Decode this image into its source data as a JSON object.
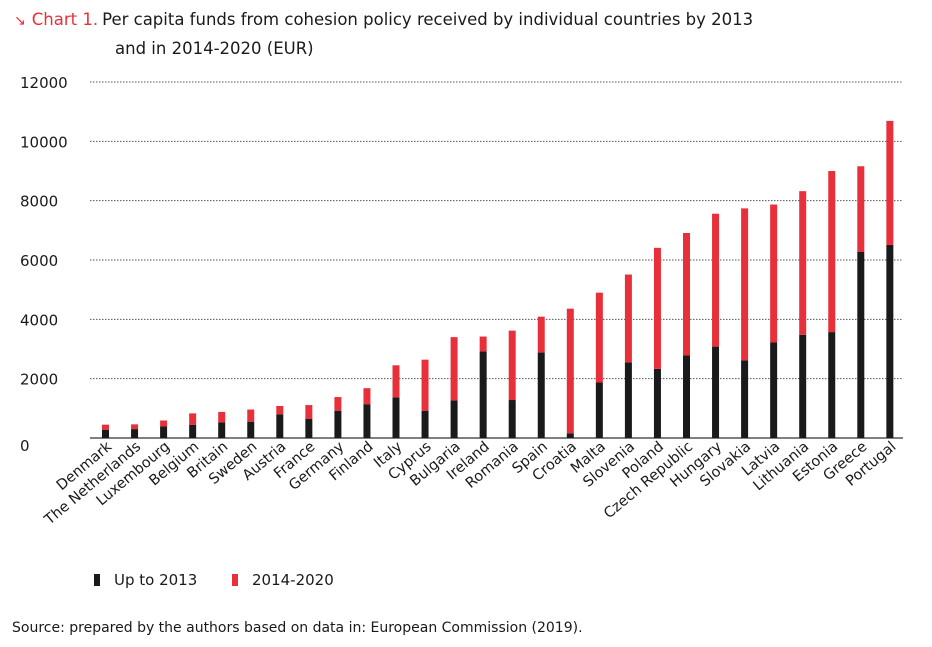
{
  "title": {
    "arrow": "↘",
    "label": "Chart 1.",
    "line1": "Per capita funds from cohesion policy received by individual countries by 2013",
    "line2": "and in 2014-2020 (EUR)"
  },
  "source": "Source: prepared by the authors based on data in: European Commission (2019).",
  "colors": {
    "up_to_2013": "#1a1a1a",
    "y2014_2020": "#e8303a",
    "grid": "#555555",
    "text": "#1a1a1a"
  },
  "chart_data": {
    "type": "bar",
    "stacked": true,
    "title": "Per capita funds from cohesion policy received by individual countries by 2013 and in 2014-2020 (EUR)",
    "xlabel": "",
    "ylabel": "",
    "ylim": [
      0,
      12000
    ],
    "yticks": [
      0,
      2000,
      4000,
      6000,
      8000,
      10000,
      12000
    ],
    "grid": true,
    "legend": "bottom-left",
    "categories": [
      "Denmark",
      "The Netherlands",
      "Luxembourg",
      "Belgium",
      "Britain",
      "Sweden",
      "Austria",
      "France",
      "Germany",
      "Finland",
      "Italy",
      "Cyprus",
      "Bulgaria",
      "Ireland",
      "Romania",
      "Spain",
      "Croatia",
      "Malta",
      "Slovenia",
      "Poland",
      "Czech Republic",
      "Hungary",
      "Slovakia",
      "Latvia",
      "Lithuania",
      "Estonia",
      "Greece",
      "Portugal"
    ],
    "series": [
      {
        "name": "Up to 2013",
        "color": "#1a1a1a",
        "values": [
          280,
          300,
          390,
          440,
          530,
          550,
          800,
          640,
          920,
          1140,
          1370,
          920,
          1270,
          2920,
          1280,
          2880,
          160,
          1870,
          2550,
          2330,
          2780,
          3080,
          2620,
          3220,
          3480,
          3570,
          6270,
          6510
        ]
      },
      {
        "name": "2014-2020",
        "color": "#e8303a",
        "values": [
          170,
          160,
          200,
          390,
          350,
          410,
          280,
          470,
          460,
          540,
          1080,
          1720,
          2130,
          500,
          2340,
          1210,
          4200,
          3030,
          2960,
          4080,
          4130,
          4480,
          5120,
          4650,
          4840,
          5430,
          2890,
          4180
        ]
      }
    ]
  }
}
